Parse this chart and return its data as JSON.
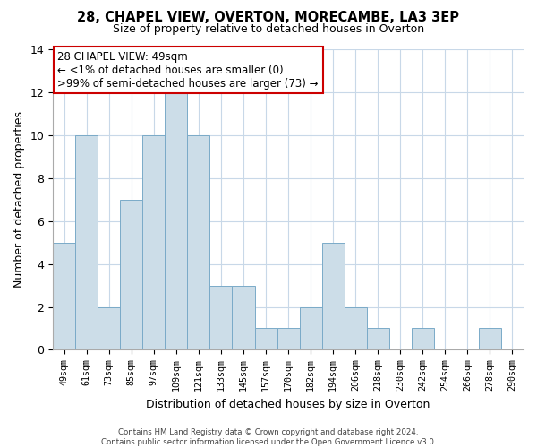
{
  "title": "28, CHAPEL VIEW, OVERTON, MORECAMBE, LA3 3EP",
  "subtitle": "Size of property relative to detached houses in Overton",
  "xlabel": "Distribution of detached houses by size in Overton",
  "ylabel": "Number of detached properties",
  "bin_labels": [
    "49sqm",
    "61sqm",
    "73sqm",
    "85sqm",
    "97sqm",
    "109sqm",
    "121sqm",
    "133sqm",
    "145sqm",
    "157sqm",
    "170sqm",
    "182sqm",
    "194sqm",
    "206sqm",
    "218sqm",
    "230sqm",
    "242sqm",
    "254sqm",
    "266sqm",
    "278sqm",
    "290sqm"
  ],
  "bar_heights": [
    5,
    10,
    2,
    7,
    10,
    12,
    10,
    3,
    3,
    1,
    1,
    2,
    5,
    2,
    1,
    0,
    1,
    0,
    0,
    1,
    0
  ],
  "bar_color": "#ccdde8",
  "bar_edgecolor": "#7aaac8",
  "annotation_title": "28 CHAPEL VIEW: 49sqm",
  "annotation_line1": "← <1% of detached houses are smaller (0)",
  "annotation_line2": ">99% of semi-detached houses are larger (73) →",
  "annotation_box_color": "#ffffff",
  "annotation_box_edgecolor": "#cc0000",
  "ylim": [
    0,
    14
  ],
  "yticks": [
    0,
    2,
    4,
    6,
    8,
    10,
    12,
    14
  ],
  "footer_line1": "Contains HM Land Registry data © Crown copyright and database right 2024.",
  "footer_line2": "Contains public sector information licensed under the Open Government Licence v3.0.",
  "background_color": "#ffffff",
  "grid_color": "#c8d8e8"
}
